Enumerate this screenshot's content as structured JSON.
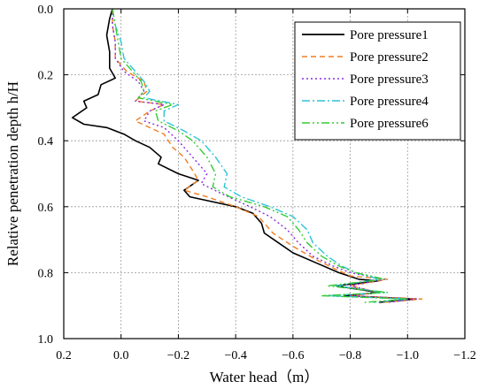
{
  "chart_data": {
    "type": "line",
    "xlabel": "Water head（m）",
    "ylabel": "Relative penetration depth h/H",
    "xlim": [
      0.2,
      -1.2
    ],
    "ylim": [
      0.0,
      1.0
    ],
    "y_inverted": true,
    "xticks": [
      "0.2",
      "0.0",
      "−0.2",
      "−0.4",
      "−0.6",
      "−0.8",
      "−1.0",
      "−1.2"
    ],
    "yticks": [
      "0.0",
      "0.2",
      "0.4",
      "0.6",
      "0.8",
      "1.0"
    ],
    "grid": true,
    "legend_position": "top-right",
    "series": [
      {
        "name": "Pore pressure1",
        "color": "#000000",
        "dash": "",
        "points": [
          [
            0.03,
            0.0
          ],
          [
            0.04,
            0.03
          ],
          [
            0.05,
            0.08
          ],
          [
            0.04,
            0.13
          ],
          [
            0.04,
            0.18
          ],
          [
            0.02,
            0.21
          ],
          [
            0.07,
            0.23
          ],
          [
            0.08,
            0.26
          ],
          [
            0.13,
            0.28
          ],
          [
            0.12,
            0.3
          ],
          [
            0.17,
            0.33
          ],
          [
            0.13,
            0.35
          ],
          [
            0.05,
            0.36
          ],
          [
            -0.01,
            0.38
          ],
          [
            -0.05,
            0.4
          ],
          [
            -0.1,
            0.42
          ],
          [
            -0.14,
            0.45
          ],
          [
            -0.13,
            0.47
          ],
          [
            -0.2,
            0.5
          ],
          [
            -0.27,
            0.52
          ],
          [
            -0.22,
            0.55
          ],
          [
            -0.24,
            0.57
          ],
          [
            -0.4,
            0.6
          ],
          [
            -0.46,
            0.62
          ],
          [
            -0.49,
            0.65
          ],
          [
            -0.5,
            0.68
          ],
          [
            -0.55,
            0.71
          ],
          [
            -0.6,
            0.74
          ],
          [
            -0.68,
            0.77
          ],
          [
            -0.76,
            0.8
          ],
          [
            -0.83,
            0.82
          ],
          [
            -0.9,
            0.825
          ],
          [
            -0.75,
            0.84
          ],
          [
            -0.9,
            0.86
          ],
          [
            -0.78,
            0.87
          ],
          [
            -1.03,
            0.88
          ],
          [
            -0.9,
            0.89
          ]
        ]
      },
      {
        "name": "Pore pressure2",
        "color": "#f07d22",
        "dash": "6,4",
        "points": [
          [
            0.03,
            0.0
          ],
          [
            0.03,
            0.05
          ],
          [
            0.02,
            0.1
          ],
          [
            0.02,
            0.15
          ],
          [
            -0.02,
            0.19
          ],
          [
            -0.08,
            0.22
          ],
          [
            -0.09,
            0.25
          ],
          [
            -0.05,
            0.28
          ],
          [
            -0.15,
            0.29
          ],
          [
            -0.1,
            0.31
          ],
          [
            -0.05,
            0.34
          ],
          [
            -0.1,
            0.36
          ],
          [
            -0.15,
            0.38
          ],
          [
            -0.18,
            0.42
          ],
          [
            -0.22,
            0.45
          ],
          [
            -0.25,
            0.49
          ],
          [
            -0.27,
            0.52
          ],
          [
            -0.22,
            0.55
          ],
          [
            -0.3,
            0.57
          ],
          [
            -0.4,
            0.6
          ],
          [
            -0.48,
            0.63
          ],
          [
            -0.53,
            0.68
          ],
          [
            -0.6,
            0.72
          ],
          [
            -0.68,
            0.76
          ],
          [
            -0.75,
            0.79
          ],
          [
            -0.8,
            0.81
          ],
          [
            -0.93,
            0.82
          ],
          [
            -0.8,
            0.84
          ],
          [
            -0.9,
            0.86
          ],
          [
            -0.8,
            0.87
          ],
          [
            -1.05,
            0.88
          ],
          [
            -0.92,
            0.89
          ]
        ]
      },
      {
        "name": "Pore pressure3",
        "color": "#8a2be2",
        "dash": "2,3",
        "points": [
          [
            0.03,
            0.0
          ],
          [
            0.03,
            0.05
          ],
          [
            0.02,
            0.1
          ],
          [
            0.02,
            0.15
          ],
          [
            -0.01,
            0.19
          ],
          [
            -0.06,
            0.22
          ],
          [
            -0.08,
            0.25
          ],
          [
            -0.05,
            0.28
          ],
          [
            -0.15,
            0.29
          ],
          [
            -0.1,
            0.31
          ],
          [
            -0.08,
            0.34
          ],
          [
            -0.15,
            0.36
          ],
          [
            -0.2,
            0.4
          ],
          [
            -0.25,
            0.45
          ],
          [
            -0.3,
            0.5
          ],
          [
            -0.28,
            0.53
          ],
          [
            -0.35,
            0.56
          ],
          [
            -0.45,
            0.6
          ],
          [
            -0.52,
            0.63
          ],
          [
            -0.58,
            0.67
          ],
          [
            -0.62,
            0.71
          ],
          [
            -0.67,
            0.75
          ],
          [
            -0.74,
            0.78
          ],
          [
            -0.8,
            0.8
          ],
          [
            -0.92,
            0.82
          ],
          [
            -0.8,
            0.84
          ],
          [
            -0.9,
            0.86
          ],
          [
            -0.8,
            0.87
          ],
          [
            -1.03,
            0.88
          ],
          [
            -0.93,
            0.89
          ]
        ]
      },
      {
        "name": "Pore pressure4",
        "color": "#2ec4d6",
        "dash": "9,3,2,3",
        "points": [
          [
            0.03,
            0.0
          ],
          [
            0.02,
            0.05
          ],
          [
            0.0,
            0.1
          ],
          [
            -0.01,
            0.15
          ],
          [
            -0.05,
            0.19
          ],
          [
            -0.08,
            0.22
          ],
          [
            -0.1,
            0.25
          ],
          [
            -0.08,
            0.27
          ],
          [
            -0.2,
            0.29
          ],
          [
            -0.15,
            0.31
          ],
          [
            -0.15,
            0.34
          ],
          [
            -0.22,
            0.37
          ],
          [
            -0.28,
            0.4
          ],
          [
            -0.33,
            0.45
          ],
          [
            -0.37,
            0.5
          ],
          [
            -0.36,
            0.54
          ],
          [
            -0.42,
            0.57
          ],
          [
            -0.52,
            0.6
          ],
          [
            -0.6,
            0.63
          ],
          [
            -0.65,
            0.67
          ],
          [
            -0.67,
            0.71
          ],
          [
            -0.72,
            0.75
          ],
          [
            -0.77,
            0.78
          ],
          [
            -0.82,
            0.8
          ],
          [
            -0.9,
            0.82
          ],
          [
            -0.75,
            0.84
          ],
          [
            -0.92,
            0.86
          ],
          [
            -0.72,
            0.87
          ],
          [
            -1.0,
            0.88
          ],
          [
            -0.88,
            0.89
          ]
        ]
      },
      {
        "name": "Pore pressure6",
        "color": "#33cc33",
        "dash": "9,3,2,3,2,3",
        "points": [
          [
            0.03,
            0.0
          ],
          [
            0.02,
            0.05
          ],
          [
            0.01,
            0.1
          ],
          [
            0.0,
            0.15
          ],
          [
            -0.04,
            0.19
          ],
          [
            -0.07,
            0.22
          ],
          [
            -0.08,
            0.25
          ],
          [
            -0.06,
            0.27
          ],
          [
            -0.18,
            0.29
          ],
          [
            -0.12,
            0.31
          ],
          [
            -0.13,
            0.34
          ],
          [
            -0.2,
            0.37
          ],
          [
            -0.25,
            0.4
          ],
          [
            -0.3,
            0.45
          ],
          [
            -0.33,
            0.5
          ],
          [
            -0.32,
            0.54
          ],
          [
            -0.38,
            0.57
          ],
          [
            -0.5,
            0.6
          ],
          [
            -0.58,
            0.63
          ],
          [
            -0.62,
            0.67
          ],
          [
            -0.65,
            0.71
          ],
          [
            -0.7,
            0.75
          ],
          [
            -0.76,
            0.78
          ],
          [
            -0.82,
            0.8
          ],
          [
            -0.92,
            0.82
          ],
          [
            -0.72,
            0.84
          ],
          [
            -0.93,
            0.86
          ],
          [
            -0.7,
            0.87
          ],
          [
            -1.0,
            0.88
          ],
          [
            -0.85,
            0.89
          ]
        ]
      }
    ]
  }
}
